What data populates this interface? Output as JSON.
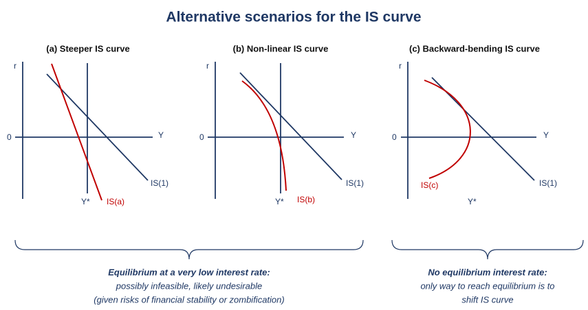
{
  "title": "Alternative scenarios for the IS curve",
  "panels": [
    {
      "title": "(a) Steeper IS curve",
      "y_axis": "r",
      "x_axis": "Y",
      "origin": "0",
      "is1_label": "IS(1)",
      "curve_label": "IS(a)",
      "ystar": "Y*"
    },
    {
      "title": "(b) Non-linear IS curve",
      "y_axis": "r",
      "x_axis": "Y",
      "origin": "0",
      "is1_label": "IS(1)",
      "curve_label": "IS(b)",
      "ystar": "Y*"
    },
    {
      "title": "(c) Backward-bending IS curve",
      "y_axis": "r",
      "x_axis": "Y",
      "origin": "0",
      "is1_label": "IS(1)",
      "curve_label": "IS(c)",
      "ystar": "Y*"
    }
  ],
  "captions": [
    {
      "heading": "Equilibrium at a very low interest rate:",
      "lines": [
        "possibly infeasible, likely undesirable",
        "(given risks of financial stability or zombification)"
      ]
    },
    {
      "heading": "No equilibrium interest rate:",
      "lines": [
        "only way to reach equilibrium is to",
        "shift IS curve"
      ]
    }
  ]
}
